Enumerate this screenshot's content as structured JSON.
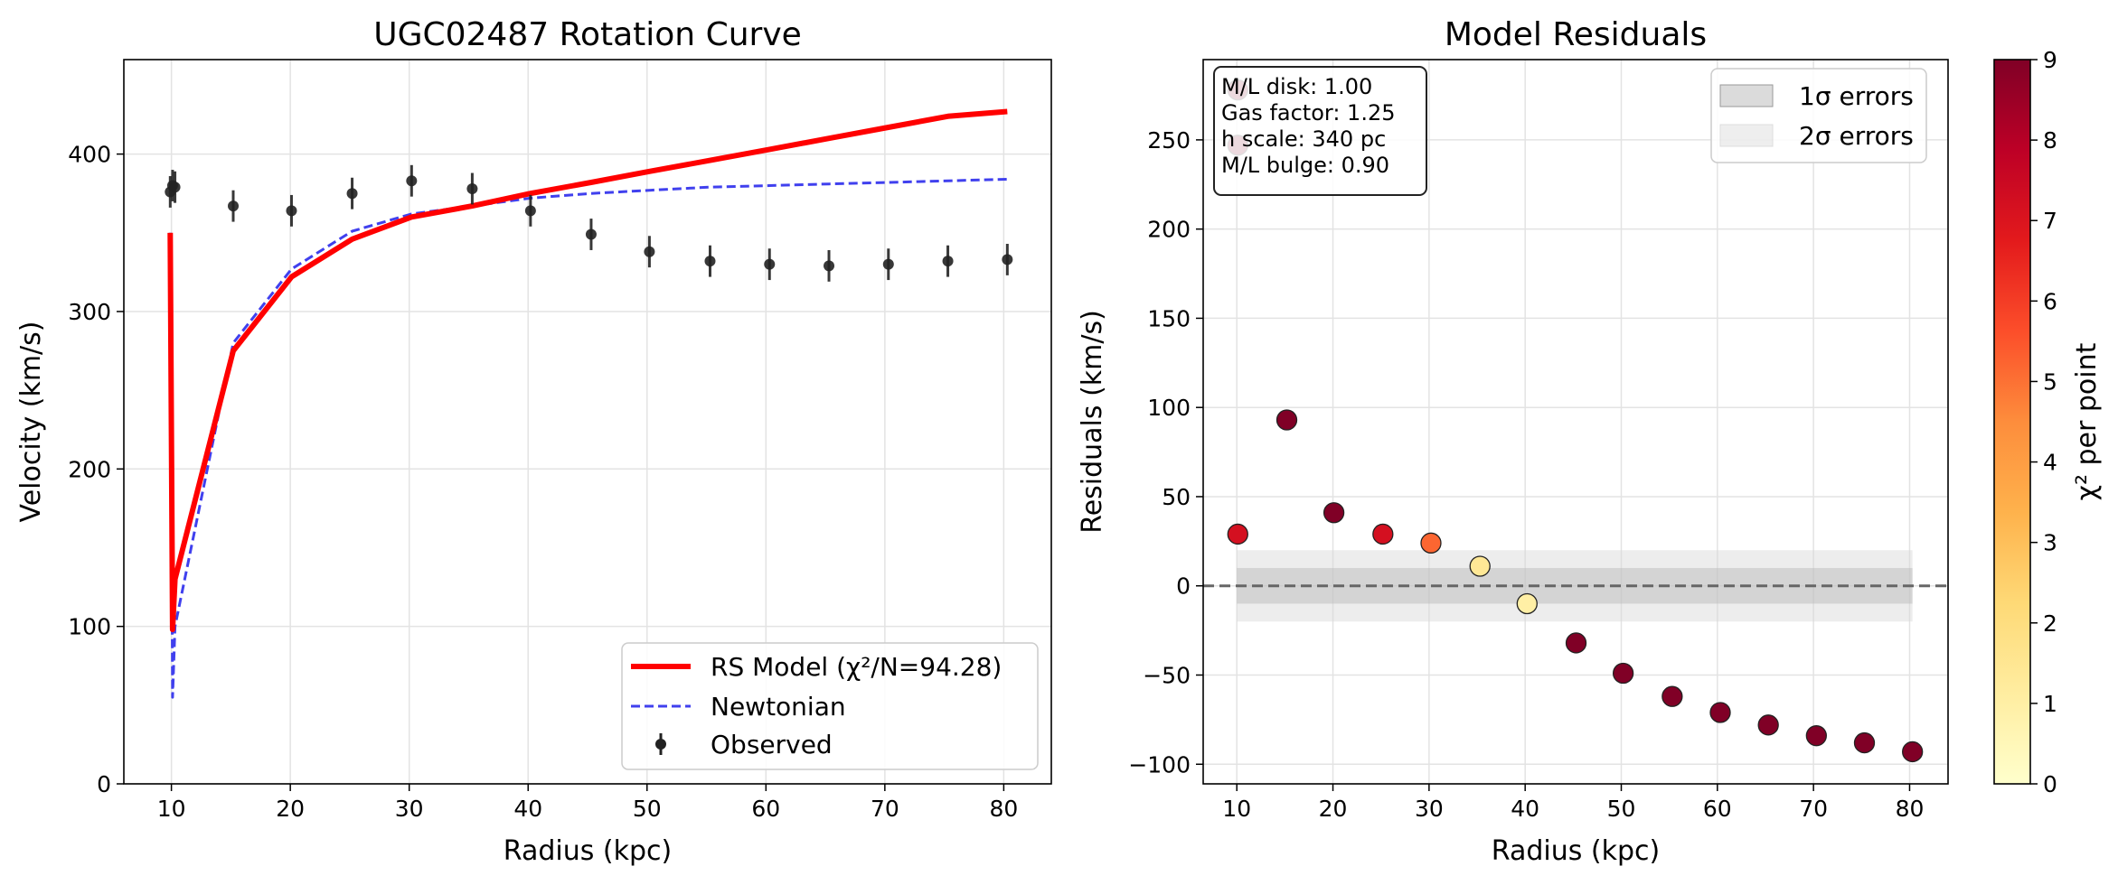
{
  "chart_data": [
    {
      "type": "line",
      "title": "UGC02487 Rotation Curve",
      "xlabel": "Radius (kpc)",
      "ylabel": "Velocity (km/s)",
      "xlim": [
        6,
        84
      ],
      "ylim": [
        0,
        460
      ],
      "xticks": [
        "10",
        "20",
        "30",
        "40",
        "50",
        "60",
        "70",
        "80"
      ],
      "yticks": [
        "0",
        "100",
        "200",
        "300",
        "400"
      ],
      "grid": true,
      "legend_position": "bottom-right",
      "series": [
        {
          "name": "RS Model (χ²/N=94.28)",
          "style": "solid",
          "color": "#ff0000",
          "x": [
            9.9,
            10.1,
            10.3,
            15.2,
            20.1,
            25.2,
            30.2,
            35.3,
            40.2,
            45.3,
            50.2,
            55.3,
            60.3,
            65.3,
            70.3,
            75.3,
            80.3
          ],
          "y": [
            350,
            98,
            130,
            275,
            322,
            346,
            360,
            367,
            375,
            382,
            389,
            396,
            403,
            410,
            417,
            424,
            427
          ]
        },
        {
          "name": "Newtonian",
          "style": "dashed",
          "color": "#4040ee",
          "x": [
            9.9,
            10.1,
            10.3,
            15.2,
            20.1,
            25.2,
            30.2,
            35.3,
            40.2,
            45.3,
            50.2,
            55.3,
            60.3,
            65.3,
            70.3,
            75.3,
            80.3
          ],
          "y": [
            350,
            55,
            100,
            280,
            327,
            351,
            362,
            367,
            372,
            375,
            377,
            379,
            380,
            381,
            382,
            383,
            384
          ]
        },
        {
          "name": "Observed",
          "style": "errorbar",
          "color": "#222222",
          "x": [
            9.9,
            10.1,
            10.3,
            15.2,
            20.1,
            25.2,
            30.2,
            35.3,
            40.2,
            45.3,
            50.2,
            55.3,
            60.3,
            65.3,
            70.3,
            75.3,
            80.3
          ],
          "y": [
            376,
            380,
            379,
            367,
            364,
            375,
            383,
            378,
            364,
            349,
            338,
            332,
            330,
            329,
            330,
            332,
            333
          ],
          "err": [
            10,
            10,
            10,
            10,
            10,
            10,
            10,
            10,
            10,
            10,
            10,
            10,
            10,
            10,
            10,
            10,
            10
          ]
        }
      ]
    },
    {
      "type": "scatter",
      "title": "Model Residuals",
      "xlabel": "Radius (kpc)",
      "ylabel": "Residuals (km/s)",
      "xlim": [
        6.5,
        84
      ],
      "ylim": [
        -111,
        295
      ],
      "xticks": [
        "10",
        "20",
        "30",
        "40",
        "50",
        "60",
        "70",
        "80"
      ],
      "yticks": [
        "−100",
        "−50",
        "0",
        "50",
        "100",
        "150",
        "200",
        "250"
      ],
      "grid": true,
      "legend_position": "top-right",
      "bands": [
        {
          "name": "1σ errors",
          "halfwidth": 10
        },
        {
          "name": "2σ errors",
          "halfwidth": 20
        }
      ],
      "band_x": [
        10,
        80.3
      ],
      "points": {
        "x": [
          10.1,
          10.1,
          10.1,
          15.2,
          20.1,
          25.2,
          30.2,
          35.3,
          40.2,
          45.3,
          50.2,
          55.3,
          60.3,
          65.3,
          70.3,
          75.3,
          80.3
        ],
        "y": [
          278,
          247,
          29,
          93,
          41,
          29,
          24,
          11,
          -10,
          -32,
          -49,
          -62,
          -71,
          -78,
          -84,
          -88,
          -93
        ],
        "chi2": [
          9,
          9,
          7.2,
          9,
          9,
          7.2,
          5.2,
          1.4,
          1.0,
          9,
          9,
          9,
          9,
          9,
          9,
          9,
          9
        ]
      },
      "colorbar": {
        "label": "χ² per point",
        "min": 0,
        "max": 9,
        "ticks": [
          "0",
          "1",
          "2",
          "3",
          "4",
          "5",
          "6",
          "7",
          "8",
          "9"
        ]
      },
      "annotation": [
        "M/L disk: 1.00",
        "Gas factor: 1.25",
        "h scale: 340 pc",
        "M/L bulge: 0.90"
      ]
    }
  ]
}
